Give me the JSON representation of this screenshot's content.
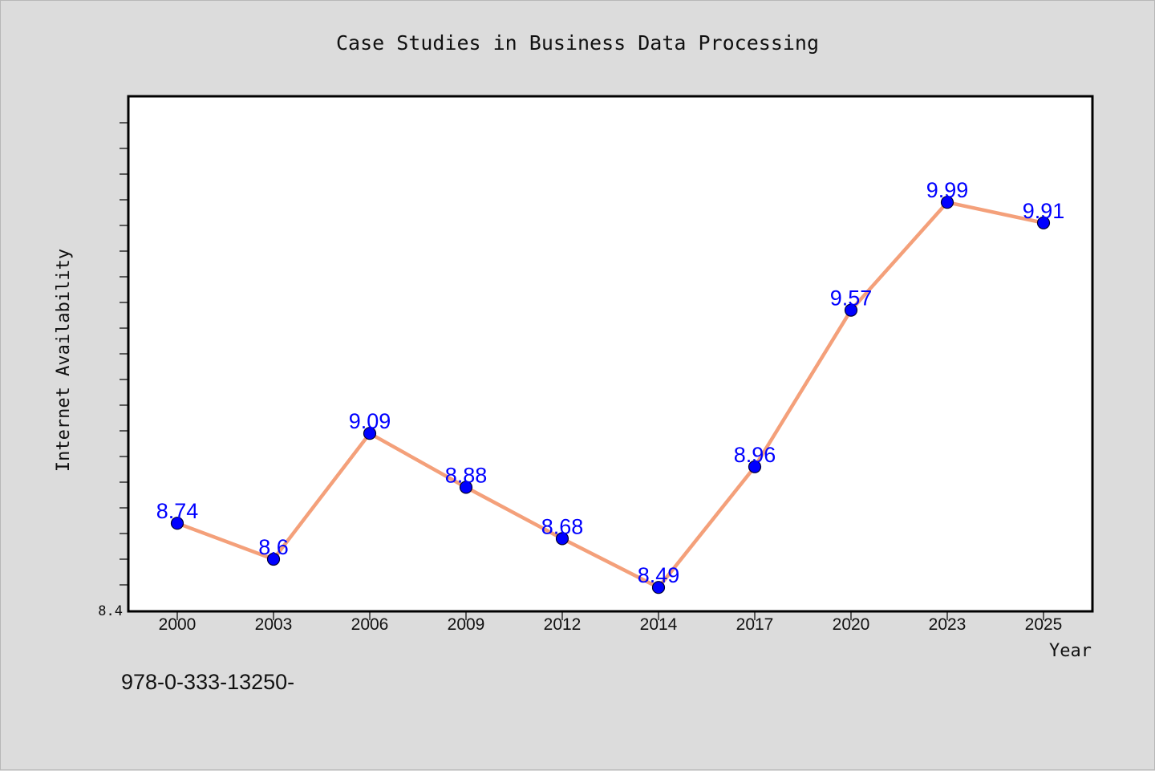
{
  "chart_data": {
    "type": "line",
    "title": "Case Studies in Business Data Processing",
    "xlabel": "Year",
    "ylabel": "Internet Availability",
    "categories": [
      "2000",
      "2003",
      "2006",
      "2009",
      "2012",
      "2014",
      "2017",
      "2020",
      "2023",
      "2025"
    ],
    "series": [
      {
        "values": [
          8.74,
          8.6,
          9.09,
          8.88,
          8.68,
          8.49,
          8.96,
          9.57,
          9.99,
          9.91
        ]
      }
    ],
    "data_labels": [
      "8.74",
      "8.6",
      "9.09",
      "8.88",
      "8.68",
      "8.49",
      "8.96",
      "9.57",
      "9.99",
      "9.91"
    ],
    "ylim": [
      8.4,
      10.4
    ],
    "y_tick_labels": [
      "8.4"
    ],
    "grid": false,
    "colors": {
      "line": "#f4a07a",
      "marker": "#0000ff",
      "marker_edge": "#000033",
      "data_label": "#0000ff",
      "background": "#dcdcdc",
      "plot_area": "#ffffff"
    }
  },
  "footer": {
    "identifier": "978-0-333-13250-"
  }
}
